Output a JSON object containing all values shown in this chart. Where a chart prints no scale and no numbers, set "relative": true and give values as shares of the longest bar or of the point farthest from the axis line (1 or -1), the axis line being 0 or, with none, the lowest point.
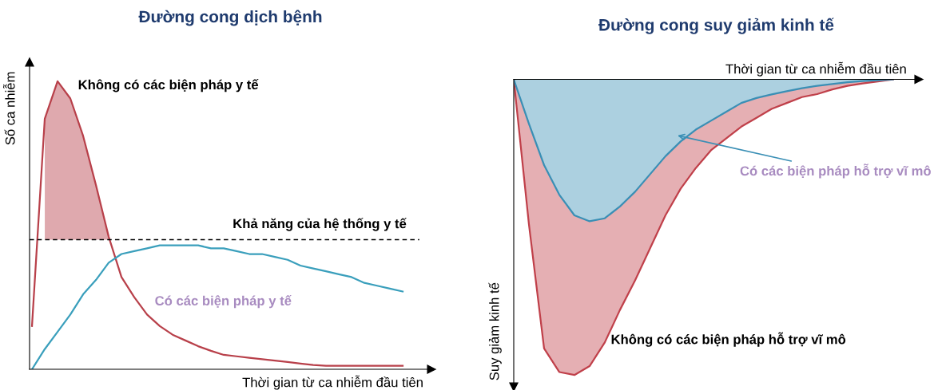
{
  "chart_data": [
    {
      "type": "line",
      "title": "Đường cong dịch bệnh",
      "xlabel": "Thời gian từ ca nhiễm đầu tiên",
      "ylabel": "Số ca nhiễm",
      "relative": true,
      "categories": [
        null,
        null,
        null,
        null,
        null,
        null,
        null,
        null,
        null,
        null,
        null,
        null,
        null,
        null,
        null,
        null,
        null,
        null,
        null,
        null,
        null,
        null,
        null,
        null,
        null,
        null,
        null,
        null,
        null,
        null
      ],
      "series": [
        {
          "color": "#b8404a",
          "values": [
            0.15,
            0.87,
            1,
            0.94,
            0.81,
            0.64,
            0.46,
            0.32,
            0.25,
            0.19,
            0.15,
            0.12,
            0.1,
            0.08,
            0.064,
            0.05,
            0.045,
            0.04,
            0.035,
            0.03,
            0.025,
            0.02,
            0.015,
            0.012,
            0.012,
            0.012,
            0.012,
            0.012,
            0.012,
            0.012
          ],
          "lower": [
            null,
            0.45,
            0.45,
            0.45,
            0.45,
            0.45,
            0.45,
            null,
            null,
            null,
            null,
            null,
            null,
            null,
            null,
            null,
            null,
            null,
            null,
            null,
            null,
            null,
            null,
            null,
            null,
            null,
            null,
            null,
            null,
            null
          ],
          "upper": [
            null,
            0.87,
            1,
            0.94,
            0.81,
            0.64,
            0.46,
            null,
            null,
            null,
            null,
            null,
            null,
            null,
            null,
            null,
            null,
            null,
            null,
            null,
            null,
            null,
            null,
            null,
            null,
            null,
            null,
            null,
            null,
            null
          ]
        },
        {
          "color": "#3a9fbc",
          "values": [
            0,
            0.07,
            0.13,
            0.19,
            0.26,
            0.31,
            0.37,
            0.4,
            0.41,
            0.42,
            0.43,
            0.43,
            0.43,
            0.43,
            0.42,
            0.42,
            0.41,
            0.4,
            0.4,
            0.39,
            0.38,
            0.36,
            0.35,
            0.34,
            0.33,
            0.32,
            0.3,
            0.29,
            0.28,
            0.27
          ]
        }
      ],
      "ref_lines": [
        {
          "axis": "y",
          "value": 0.45,
          "label": "Khả năng của hệ thống y tế",
          "color": "#000000",
          "line_style": "dashed"
        }
      ],
      "annotations": [
        "Không có các biện pháp y tế",
        "Có các biện pháp y tế"
      ],
      "grid": false,
      "legend": false
    },
    {
      "type": "area",
      "title": "Đường cong suy giảm kinh tế",
      "xlabel": "Thời gian từ ca nhiễm đầu tiên",
      "ylabel": "Suy giảm kinh tế",
      "relative": true,
      "categories": [
        null,
        null,
        null,
        null,
        null,
        null,
        null,
        null,
        null,
        null,
        null,
        null,
        null,
        null,
        null,
        null,
        null,
        null,
        null,
        null,
        null,
        null,
        null,
        null,
        null,
        null
      ],
      "series": [
        {
          "color": "#c0404a",
          "values": [
            0,
            -0.49,
            -0.91,
            -0.99,
            -1,
            -0.97,
            -0.89,
            -0.78,
            -0.68,
            -0.57,
            -0.46,
            -0.37,
            -0.3,
            -0.24,
            -0.2,
            -0.16,
            -0.13,
            -0.1,
            -0.08,
            -0.06,
            -0.05,
            -0.034,
            -0.022,
            -0.014,
            -0.007,
            0
          ]
        },
        {
          "color": "#3a8fb5",
          "values": [
            0,
            -0.15,
            -0.29,
            -0.39,
            -0.46,
            -0.48,
            -0.47,
            -0.43,
            -0.38,
            -0.32,
            -0.26,
            -0.21,
            -0.17,
            -0.14,
            -0.11,
            -0.08,
            -0.063,
            -0.051,
            -0.04,
            -0.03,
            -0.022,
            -0.016,
            -0.01,
            -0.006,
            -0.003,
            0
          ]
        }
      ],
      "annotations": [
        "Có các biện pháp hỗ trợ vĩ mô",
        "Không có các biện pháp hỗ trợ vĩ mô"
      ],
      "grid": false,
      "legend": false
    }
  ]
}
